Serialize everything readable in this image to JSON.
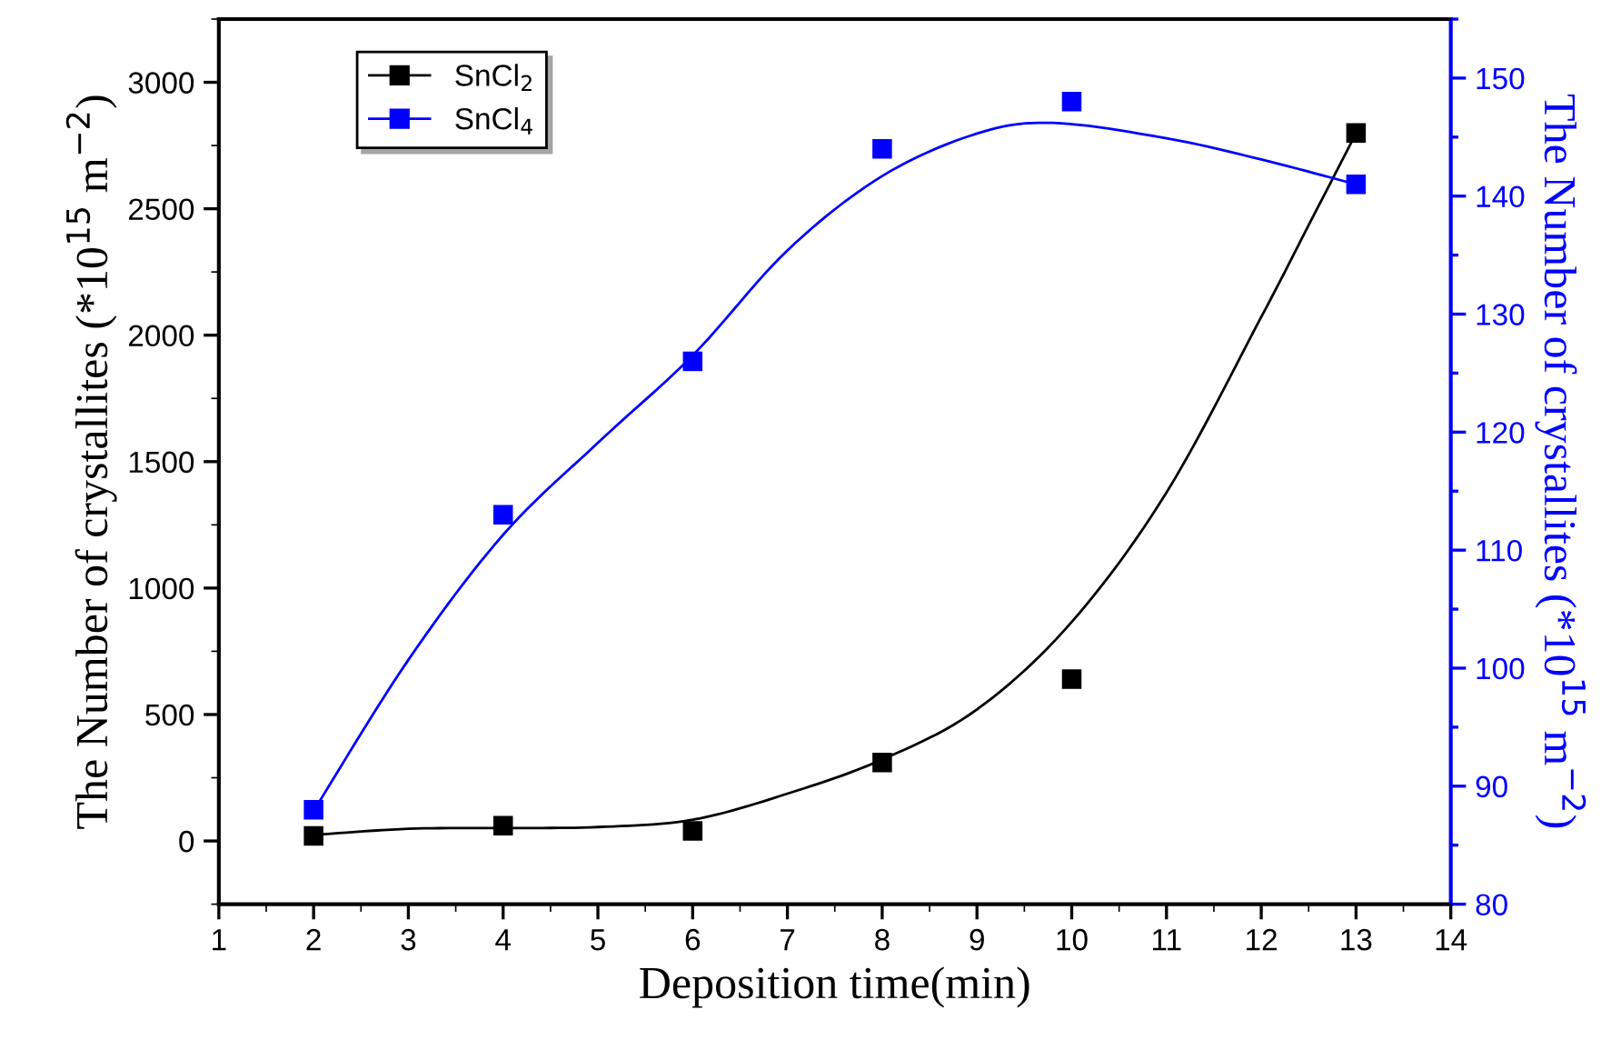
{
  "chart_data": {
    "type": "line",
    "xlabel": "Deposition time(min)",
    "ylabel": "The Number of crystallites (*10$^{15}$ m$^{−2}$)",
    "y2label": "The Number of crystallites (*10$^{15}$ m$^{−2}$)",
    "xlim": [
      1,
      14
    ],
    "xticks": [
      1,
      2,
      3,
      4,
      5,
      6,
      7,
      8,
      9,
      10,
      11,
      12,
      13,
      14
    ],
    "ylim": [
      -250,
      3250
    ],
    "yticks": [
      0,
      500,
      1000,
      1500,
      2000,
      2500,
      3000
    ],
    "y2lim": [
      80,
      155
    ],
    "y2ticks": [
      80,
      90,
      100,
      110,
      120,
      130,
      140,
      150
    ],
    "legend": "top left",
    "grid": false,
    "series": [
      {
        "name": "SnCl$_{2}$",
        "type": "scatter",
        "marker": "square",
        "color": "#000000",
        "x": [
          2,
          4,
          6,
          8,
          10,
          13
        ],
        "values": [
          20,
          60,
          40,
          310,
          640,
          2800
        ]
      },
      {
        "name": "SnCl$_{4}$",
        "type": "scatter",
        "marker": "square",
        "axis": "y2",
        "color": "#0000ff",
        "x": [
          2,
          4,
          6,
          8,
          10,
          13
        ],
        "values": [
          88,
          113,
          126,
          144,
          148,
          141
        ]
      },
      {
        "color": "#000000",
        "x": [
          2,
          3,
          4,
          5,
          6,
          7,
          8,
          9,
          10,
          11,
          12,
          12.5,
          13
        ],
        "values": [
          24,
          48,
          51,
          55,
          84,
          187,
          322,
          520,
          866,
          1378,
          2072,
          2435,
          2798
        ]
      },
      {
        "axis": "y2",
        "color": "#0000ff",
        "x": [
          2,
          3,
          4,
          5,
          6,
          7,
          8,
          9,
          9.8,
          11,
          12,
          13
        ],
        "values": [
          87.9,
          100.7,
          111.3,
          119.1,
          126.5,
          135.4,
          141.7,
          145.3,
          146.2,
          144.9,
          143.1,
          141.0
        ]
      }
    ]
  }
}
